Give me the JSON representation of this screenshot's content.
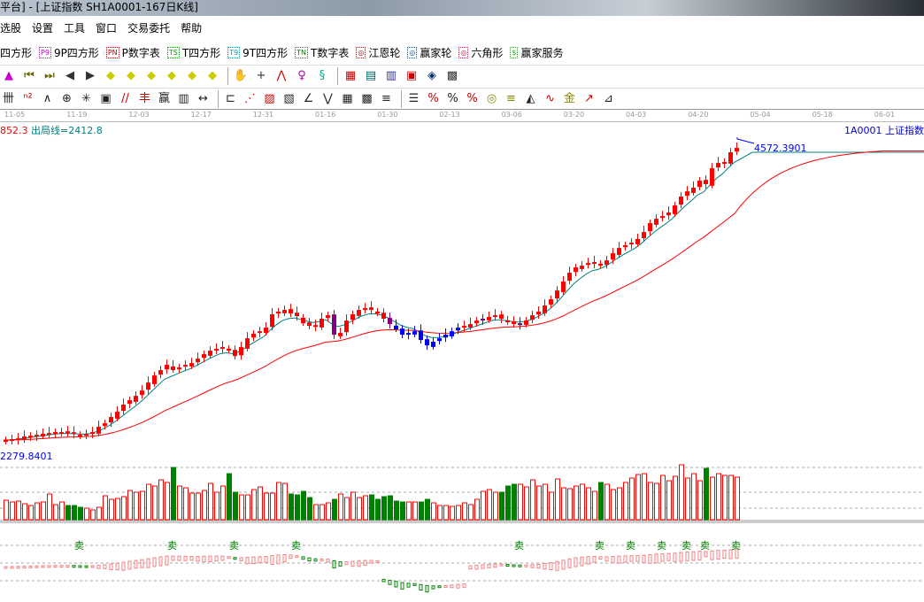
{
  "window": {
    "title": "平台] - [上证指数  SH1A0001-167日K线]"
  },
  "menu": [
    "选股",
    "设置",
    "工具",
    "窗口",
    "交易委托",
    "帮助"
  ],
  "toolbar1": [
    {
      "label": "四方形",
      "badge": "",
      "color": "#000"
    },
    {
      "label": "9P四方形",
      "badge": "P9",
      "color": "#c000c0"
    },
    {
      "label": "P数字表",
      "badge": "PN",
      "color": "#c00000"
    },
    {
      "label": "T四方形",
      "badge": "TS",
      "color": "#00a000"
    },
    {
      "label": "9T四方形",
      "badge": "T9",
      "color": "#00a0a0"
    },
    {
      "label": "T数字表",
      "badge": "TN",
      "color": "#008000"
    },
    {
      "label": "江恩轮",
      "badge": "◎",
      "color": "#802020"
    },
    {
      "label": "赢家轮",
      "badge": "◎",
      "color": "#205080"
    },
    {
      "label": "六角形",
      "badge": "◎",
      "color": "#c02040"
    },
    {
      "label": "赢家服务",
      "badge": "$",
      "color": "#30a030"
    }
  ],
  "toolbar2_icons": [
    "chart-type-icon",
    "first-icon",
    "last-icon",
    "prev-icon",
    "next-icon",
    "left-arrow-icon",
    "right-arrow-icon",
    "expand-icon",
    "shrink-icon",
    "zoom-in-icon",
    "zoom-out-icon",
    "hand-icon",
    "crosshair-icon",
    "line-tool-icon",
    "t-tool-icon",
    "chain-icon",
    "calendar-icon",
    "calculator-icon",
    "document-icon",
    "save-icon",
    "network-icon",
    "print-icon"
  ],
  "toolbar3_icons": [
    "grid-lines-icon",
    "n2-icon",
    "angle-icon",
    "target-icon",
    "compass-icon",
    "box-icon",
    "lines-icon",
    "gann-icon",
    "win-icon",
    "ruler-icon",
    "width-icon",
    "frame-icon",
    "fan-icon",
    "square-fan-icon",
    "box-fan-icon",
    "angle-lines-icon",
    "zigzag-icon",
    "grid-icon",
    "grid2-icon",
    "parallel-icon",
    "list-icon",
    "percent-line-icon",
    "percent-icon",
    "percent-level-icon",
    "gold-circle-icon",
    "gold-level-icon",
    "pen-icon",
    "sine-icon",
    "gold-bar-icon",
    "trend-icon",
    "signal-icon"
  ],
  "dates": [
    "11-05",
    "11-19",
    "12-03",
    "12-17",
    "12-31",
    "01-16",
    "01-30",
    "02-13",
    "03-06",
    "03-20",
    "04-03",
    "04-20",
    "05-04",
    "05-18",
    "06-01"
  ],
  "info": {
    "prefix": "852.3",
    "label": "出局线=2412.8"
  },
  "code_label": "1A0001  上证指数",
  "colors": {
    "up": "#ff0000",
    "down_vol": "#008000",
    "ma_short": "#008080",
    "ma_long": "#ff0000",
    "highlight_blue": "#0000ff",
    "highlight_purple": "#800080",
    "label_blue": "#0000ff"
  },
  "chart_data": {
    "type": "candlestick",
    "high_label": "4572.3901",
    "low_label": "2279.8401",
    "closes": [
      2379,
      2386,
      2392,
      2406,
      2412,
      2419,
      2426,
      2432,
      2439,
      2439,
      2432,
      2426,
      2419,
      2419,
      2439,
      2479,
      2505,
      2552,
      2592,
      2645,
      2678,
      2711,
      2751,
      2811,
      2864,
      2904,
      2944,
      2904,
      2924,
      2944,
      2957,
      2990,
      3024,
      3050,
      3064,
      3077,
      3050,
      3010,
      3077,
      3143,
      3177,
      3196,
      3223,
      3323,
      3343,
      3356,
      3329,
      3309,
      3256,
      3236,
      3236,
      3290,
      3316,
      3170,
      3183,
      3276,
      3323,
      3356,
      3369,
      3356,
      3329,
      3290,
      3250,
      3210,
      3170,
      3183,
      3196,
      3130,
      3090,
      3117,
      3143,
      3170,
      3196,
      3223,
      3236,
      3250,
      3276,
      3290,
      3303,
      3316,
      3290,
      3263,
      3250,
      3256,
      3276,
      3316,
      3343,
      3389,
      3436,
      3502,
      3569,
      3635,
      3675,
      3688,
      3708,
      3715,
      3688,
      3728,
      3781,
      3821,
      3841,
      3861,
      3888,
      3941,
      4007,
      4040,
      4060,
      4087,
      4140,
      4207,
      4246,
      4273,
      4326,
      4300,
      4419,
      4459,
      4466,
      4539,
      4572
    ],
    "volume": [
      22,
      20,
      21,
      18,
      16,
      19,
      20,
      29,
      17,
      20,
      16,
      16,
      14,
      13,
      11,
      14,
      27,
      23,
      24,
      26,
      33,
      31,
      32,
      40,
      38,
      45,
      42,
      59,
      38,
      36,
      30,
      30,
      33,
      41,
      31,
      38,
      52,
      31,
      28,
      28,
      34,
      37,
      30,
      30,
      42,
      41,
      29,
      28,
      32,
      25,
      17,
      17,
      19,
      23,
      29,
      25,
      31,
      25,
      27,
      28,
      23,
      26,
      27,
      21,
      20,
      20,
      20,
      20,
      23,
      19,
      16,
      16,
      15,
      16,
      19,
      17,
      23,
      32,
      34,
      31,
      31,
      38,
      40,
      40,
      37,
      45,
      38,
      40,
      31,
      46,
      36,
      35,
      38,
      40,
      36,
      32,
      42,
      40,
      34,
      36,
      42,
      47,
      51,
      52,
      42,
      41,
      50,
      44,
      49,
      62,
      47,
      52,
      44,
      58,
      48,
      52,
      50,
      50,
      48
    ],
    "sell_signals": [
      12,
      27,
      37,
      47,
      83,
      96,
      101,
      106,
      110,
      113,
      118
    ]
  }
}
